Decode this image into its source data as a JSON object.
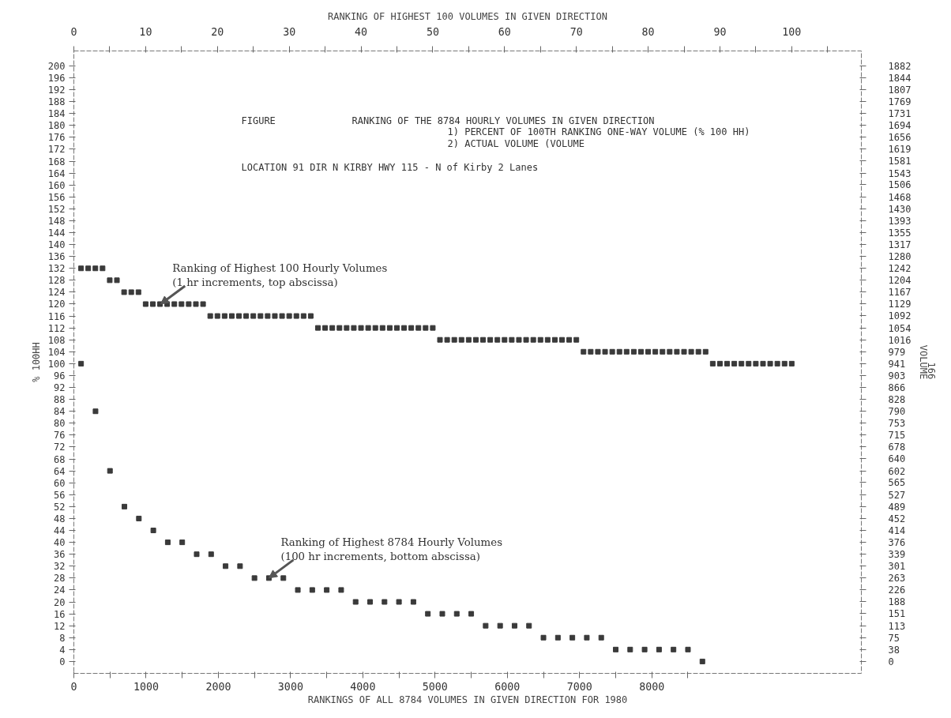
{
  "chart_data": {
    "type": "scatter",
    "xlabel": "RANKINGS OF ALL 8784 VOLUMES IN GIVEN DIRECTION FOR 1980",
    "x2label": "RANKING OF HIGHEST 100 VOLUMES IN GIVEN DIRECTION",
    "ylabel": "% 100HH",
    "y2label": "VOLUME",
    "annotations": [
      "FIGURE",
      "RANKING OF THE 8784 HOURLY VOLUMES IN GIVEN DIRECTION",
      "1) PERCENT OF 100TH RANKING ONE-WAY VOLUME   (% 100 HH)",
      "2) ACTUAL VOLUME    (VOLUME",
      "LOCATION  91   DIR  N   KIRBY    HWY 115  - N  of Kirby  2 Lanes",
      {
        "text": "Ranking of Highest 100 Hourly Volumes\n   (1 hr increments, top abscissa)",
        "x": 1200,
        "y": 120
      },
      {
        "text": "Ranking of Highest 8784 Hourly Volumes\n  (100 hr increments, bottom abscissa)",
        "x": 2700,
        "y": 28
      },
      "166"
    ],
    "xlim": [
      0,
      10900
    ],
    "xticks": [
      0,
      {
        "value": 500,
        "label": null
      },
      1000,
      {
        "value": 1500,
        "label": null
      },
      2000,
      {
        "value": 2500,
        "label": null
      },
      3000,
      {
        "value": 3500,
        "label": null
      },
      4000,
      {
        "value": 4500,
        "label": null
      },
      5000,
      {
        "value": 5500,
        "label": null
      },
      6000,
      {
        "value": 6500,
        "label": null
      },
      7000,
      {
        "value": 7500,
        "label": null
      },
      8000,
      {
        "value": 8500,
        "label": null
      }
    ],
    "x2lim": [
      0,
      109.7
    ],
    "x2ticks": [
      0,
      {
        "value": 5,
        "label": null
      },
      10,
      {
        "value": 15,
        "label": null
      },
      20,
      {
        "value": 25,
        "label": null
      },
      30,
      {
        "value": 35,
        "label": null
      },
      40,
      {
        "value": 45,
        "label": null
      },
      50,
      {
        "value": 55,
        "label": null
      },
      60,
      {
        "value": 65,
        "label": null
      },
      70,
      {
        "value": 75,
        "label": null
      },
      80,
      {
        "value": 85,
        "label": null
      },
      90,
      {
        "value": 95,
        "label": null
      },
      100,
      {
        "value": 105,
        "label": null
      }
    ],
    "ylim": [
      -4,
      205
    ],
    "yticks": [
      0,
      4,
      8,
      12,
      16,
      20,
      24,
      28,
      32,
      36,
      40,
      44,
      48,
      52,
      56,
      60,
      64,
      68,
      72,
      76,
      80,
      84,
      88,
      92,
      96,
      100,
      104,
      108,
      112,
      116,
      120,
      124,
      128,
      132,
      136,
      140,
      144,
      148,
      152,
      156,
      160,
      164,
      168,
      172,
      176,
      180,
      184,
      188,
      192,
      196,
      200
    ],
    "y2lim": [
      -38,
      1929
    ],
    "y2ticks": [
      0,
      38,
      75,
      113,
      151,
      188,
      226,
      263,
      301,
      339,
      376,
      414,
      452,
      489,
      527,
      565,
      602,
      640,
      678,
      715,
      753,
      790,
      828,
      866,
      903,
      941,
      979,
      1016,
      1054,
      1092,
      1129,
      1167,
      1204,
      1242,
      1280,
      1317,
      1355,
      1393,
      1430,
      1468,
      1506,
      1543,
      1581,
      1619,
      1656,
      1694,
      1731,
      1769,
      1807,
      1844,
      1882
    ],
    "grid": false,
    "legend": false,
    "marker": "square",
    "series": [
      {
        "color": "#3a3a3a",
        "axis": "x2",
        "x": [
          1,
          2,
          3,
          4,
          5,
          6,
          7,
          8,
          9,
          10,
          11,
          12,
          13,
          14,
          15,
          16,
          17,
          18,
          19,
          20,
          21,
          22,
          23,
          24,
          25,
          26,
          27,
          28,
          29,
          30,
          31,
          32,
          33,
          34,
          35,
          36,
          37,
          38,
          39,
          40,
          41,
          42,
          43,
          44,
          45,
          46,
          47,
          48,
          49,
          50,
          51,
          52,
          53,
          54,
          55,
          56,
          57,
          58,
          59,
          60,
          61,
          62,
          63,
          64,
          65,
          66,
          67,
          68,
          69,
          70,
          71,
          72,
          73,
          74,
          75,
          76,
          77,
          78,
          79,
          80,
          81,
          82,
          83,
          84,
          85,
          86,
          87,
          88,
          89,
          90,
          91,
          92,
          93,
          94,
          95,
          96,
          97,
          98,
          99,
          100
        ],
        "values": [
          132,
          132,
          132,
          132,
          128,
          128,
          124,
          124,
          124,
          120,
          120,
          120,
          120,
          120,
          120,
          120,
          120,
          120,
          116,
          116,
          116,
          116,
          116,
          116,
          116,
          116,
          116,
          116,
          116,
          116,
          116,
          116,
          116,
          112,
          112,
          112,
          112,
          112,
          112,
          112,
          112,
          112,
          112,
          112,
          112,
          112,
          112,
          112,
          112,
          112,
          108,
          108,
          108,
          108,
          108,
          108,
          108,
          108,
          108,
          108,
          108,
          108,
          108,
          108,
          108,
          108,
          108,
          108,
          108,
          108,
          104,
          104,
          104,
          104,
          104,
          104,
          104,
          104,
          104,
          104,
          104,
          104,
          104,
          104,
          104,
          104,
          104,
          104,
          100,
          100,
          100,
          100,
          100,
          100,
          100,
          100,
          100,
          100,
          100,
          100
        ]
      },
      {
        "color": "#3a3a3a",
        "x": [
          100,
          300,
          500,
          700,
          900,
          1100,
          1300,
          1500,
          1700,
          1900,
          2100,
          2300,
          2500,
          2700,
          2900,
          3100,
          3300,
          3500,
          3700,
          3900,
          4100,
          4300,
          4500,
          4700,
          4900,
          5100,
          5300,
          5500,
          5700,
          5900,
          6100,
          6300,
          6500,
          6700,
          6900,
          7100,
          7300,
          7500,
          7700,
          7900,
          8100,
          8300,
          8500,
          8700
        ],
        "values": [
          100,
          84,
          64,
          52,
          48,
          44,
          40,
          40,
          36,
          36,
          32,
          32,
          28,
          28,
          28,
          24,
          24,
          24,
          24,
          20,
          20,
          20,
          20,
          20,
          16,
          16,
          16,
          16,
          12,
          12,
          12,
          12,
          8,
          8,
          8,
          8,
          8,
          4,
          4,
          4,
          4,
          4,
          4,
          0
        ]
      }
    ]
  }
}
